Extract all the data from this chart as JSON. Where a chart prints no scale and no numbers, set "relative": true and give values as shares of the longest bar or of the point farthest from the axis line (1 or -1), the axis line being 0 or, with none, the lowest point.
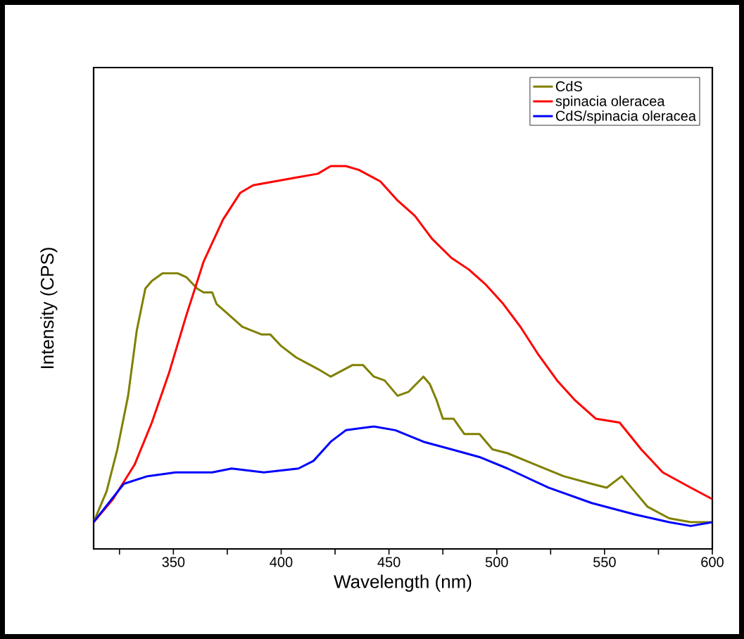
{
  "chart_data": {
    "type": "line",
    "relative": true,
    "xlabel": "Wavelength (nm)",
    "ylabel": "Intensity (CPS)",
    "xlim": [
      313,
      600
    ],
    "xticks": [
      {
        "value": 325,
        "label": null
      },
      350,
      {
        "value": 375,
        "label": null
      },
      400,
      {
        "value": 425,
        "label": null
      },
      450,
      {
        "value": 475,
        "label": null
      },
      500,
      {
        "value": 525,
        "label": null
      },
      550,
      {
        "value": 575,
        "label": null
      },
      600
    ],
    "legend": "top right",
    "grid": false,
    "marker": "none",
    "line_style": "solid",
    "series": [
      {
        "name": "CdS",
        "color": "#808000",
        "x": [
          313,
          319,
          324,
          329,
          333,
          337,
          340,
          345,
          348,
          352,
          356,
          361,
          364,
          368,
          370,
          374,
          382,
          391,
          395,
          400,
          407,
          417,
          423,
          433,
          438,
          443,
          448,
          454,
          459,
          466,
          469,
          472,
          475,
          480,
          485,
          492,
          498,
          505,
          518,
          531,
          544,
          551,
          558,
          564,
          570,
          580,
          590,
          600
        ],
        "values": [
          0.07,
          0.15,
          0.26,
          0.4,
          0.57,
          0.68,
          0.7,
          0.72,
          0.72,
          0.72,
          0.71,
          0.68,
          0.67,
          0.67,
          0.64,
          0.62,
          0.58,
          0.56,
          0.56,
          0.53,
          0.5,
          0.47,
          0.45,
          0.48,
          0.48,
          0.45,
          0.44,
          0.4,
          0.41,
          0.45,
          0.43,
          0.39,
          0.34,
          0.34,
          0.3,
          0.3,
          0.26,
          0.25,
          0.22,
          0.19,
          0.17,
          0.16,
          0.19,
          0.15,
          0.11,
          0.08,
          0.07,
          0.07
        ]
      },
      {
        "name": "spinacia oleracea",
        "color": "#ff0000",
        "x": [
          313,
          322,
          332,
          340,
          348,
          356,
          364,
          373,
          381,
          387,
          397,
          407,
          417,
          423,
          430,
          436,
          446,
          454,
          462,
          470,
          479,
          487,
          495,
          503,
          511,
          519,
          528,
          536,
          546,
          557,
          567,
          577,
          590,
          600
        ],
        "values": [
          0.07,
          0.13,
          0.22,
          0.33,
          0.46,
          0.61,
          0.75,
          0.86,
          0.93,
          0.95,
          0.96,
          0.97,
          0.98,
          1.0,
          1.0,
          0.99,
          0.96,
          0.91,
          0.87,
          0.81,
          0.76,
          0.73,
          0.69,
          0.64,
          0.58,
          0.51,
          0.44,
          0.39,
          0.34,
          0.33,
          0.26,
          0.2,
          0.16,
          0.13
        ]
      },
      {
        "name": "CdS/spinacia oleracea",
        "color": "#0000ff",
        "x": [
          313,
          327,
          338,
          351,
          368,
          377,
          392,
          408,
          415,
          423,
          430,
          443,
          453,
          466,
          479,
          492,
          505,
          524,
          544,
          564,
          580,
          590,
          600
        ],
        "values": [
          0.07,
          0.17,
          0.19,
          0.2,
          0.2,
          0.21,
          0.2,
          0.21,
          0.23,
          0.28,
          0.31,
          0.32,
          0.31,
          0.28,
          0.26,
          0.24,
          0.21,
          0.16,
          0.12,
          0.09,
          0.07,
          0.06,
          0.07
        ]
      }
    ]
  }
}
